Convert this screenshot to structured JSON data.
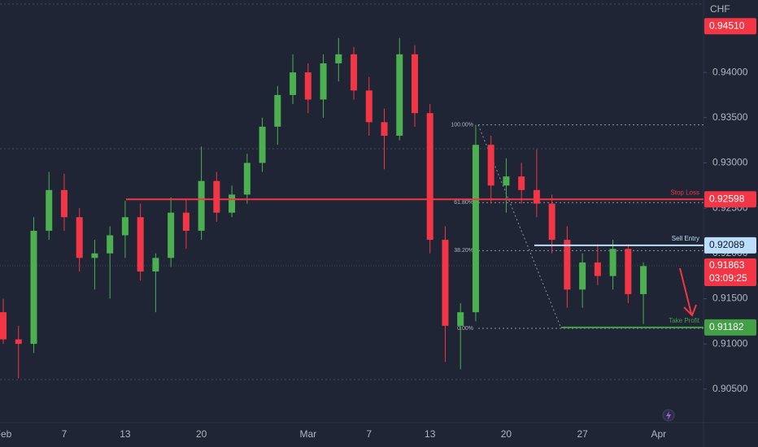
{
  "chart_data": {
    "type": "candlestick",
    "axis_label": "CHF",
    "categories": [
      "Feb",
      null,
      null,
      null,
      "7",
      null,
      null,
      null,
      "13",
      null,
      null,
      null,
      null,
      "20",
      null,
      null,
      null,
      null,
      null,
      null,
      "Mar",
      null,
      null,
      null,
      "7",
      null,
      null,
      null,
      "13",
      null,
      null,
      null,
      null,
      "20",
      null,
      null,
      null,
      null,
      "27",
      null,
      null,
      null,
      null,
      "Apr"
    ],
    "open": [
      0.9135,
      0.9105,
      0.91,
      0.9225,
      0.927,
      0.924,
      0.9195,
      0.92,
      0.922,
      0.924,
      0.918,
      0.9195,
      0.9245,
      0.9225,
      0.928,
      0.9245,
      0.9265,
      0.93,
      0.934,
      0.9375,
      0.94,
      0.937,
      0.941,
      0.942,
      0.938,
      0.9345,
      0.933,
      0.942,
      0.9355,
      0.9215,
      0.912,
      0.9135,
      0.932,
      0.9275,
      0.9285,
      0.927,
      0.9255,
      0.9215,
      0.916,
      0.919,
      0.9175,
      0.9205,
      0.9155,
      null
    ],
    "high": [
      0.915,
      0.912,
      0.924,
      0.929,
      0.9288,
      0.925,
      0.9215,
      0.923,
      0.9258,
      0.9255,
      0.92,
      0.9262,
      0.926,
      0.9318,
      0.929,
      0.9275,
      0.931,
      0.935,
      0.9385,
      0.942,
      0.941,
      0.942,
      0.9438,
      0.9428,
      0.9395,
      0.936,
      0.9438,
      0.943,
      0.9365,
      0.923,
      0.9145,
      0.9342,
      0.933,
      0.9305,
      0.93,
      0.9315,
      0.9265,
      0.923,
      0.92,
      0.921,
      0.9215,
      0.921,
      0.919,
      null
    ],
    "low": [
      0.91,
      0.9062,
      0.909,
      0.9215,
      0.9225,
      0.918,
      0.916,
      0.915,
      0.9195,
      0.917,
      0.9135,
      0.9185,
      0.9205,
      0.9215,
      0.9235,
      0.924,
      0.9255,
      0.929,
      0.932,
      0.9365,
      0.9355,
      0.935,
      0.939,
      0.937,
      0.933,
      0.9293,
      0.9325,
      0.934,
      0.92,
      0.908,
      0.9072,
      0.9125,
      0.9255,
      0.9245,
      0.9255,
      0.924,
      0.92,
      0.914,
      0.914,
      0.9165,
      0.916,
      0.9145,
      0.9122,
      null
    ],
    "close": [
      0.9105,
      0.91,
      0.9225,
      0.927,
      0.924,
      0.9195,
      0.92,
      0.922,
      0.924,
      0.918,
      0.9195,
      0.9245,
      0.9225,
      0.928,
      0.9245,
      0.9265,
      0.93,
      0.934,
      0.9375,
      0.94,
      0.937,
      0.941,
      0.942,
      0.938,
      0.9345,
      0.933,
      0.942,
      0.9355,
      0.9215,
      0.912,
      0.9135,
      0.932,
      0.9275,
      0.9285,
      0.927,
      0.9255,
      0.9215,
      0.916,
      0.919,
      0.9175,
      0.9205,
      0.9155,
      0.9186,
      null
    ],
    "up_color": "#4caf50",
    "down_color": "#f23645",
    "ylim": [
      0.9013,
      0.948
    ],
    "yticks": [
      {
        "value": 0.905,
        "label": "0.90500"
      },
      {
        "value": 0.91,
        "label": "0.91000"
      },
      {
        "value": 0.915,
        "label": "0.91500"
      },
      {
        "value": 0.92,
        "label": "0.92000"
      },
      {
        "value": 0.925,
        "label": "0.92500"
      },
      {
        "value": 0.93,
        "label": "0.93000"
      },
      {
        "value": 0.935,
        "label": "0.93500"
      },
      {
        "value": 0.94,
        "label": "0.94000"
      }
    ],
    "levels": [
      {
        "name": "Stop Loss",
        "value": 0.92598,
        "value_label": "0.92598",
        "color": "#f23645"
      },
      {
        "name": "Sell Entry",
        "value": 0.92089,
        "value_label": "0.92089",
        "color": "#bbdefb"
      },
      {
        "name": "Take Profit",
        "value": 0.91182,
        "value_label": "0.91182",
        "color": "#43a047"
      }
    ],
    "high_marker": {
      "value": 0.9451,
      "label": "0.94510",
      "color": "#f23645"
    },
    "last_price": {
      "value": 0.91863,
      "label": "0.91863",
      "countdown": "03:09:25",
      "color": "#f23645"
    },
    "fib": {
      "high": 0.9342,
      "low": 0.91172,
      "levels": [
        {
          "value": 100,
          "label": "100.00%"
        },
        {
          "value": 61.8,
          "label": "61.80%"
        },
        {
          "value": 38.2,
          "label": "38.20%"
        },
        {
          "value": 0,
          "label": "0.00%"
        }
      ]
    }
  }
}
